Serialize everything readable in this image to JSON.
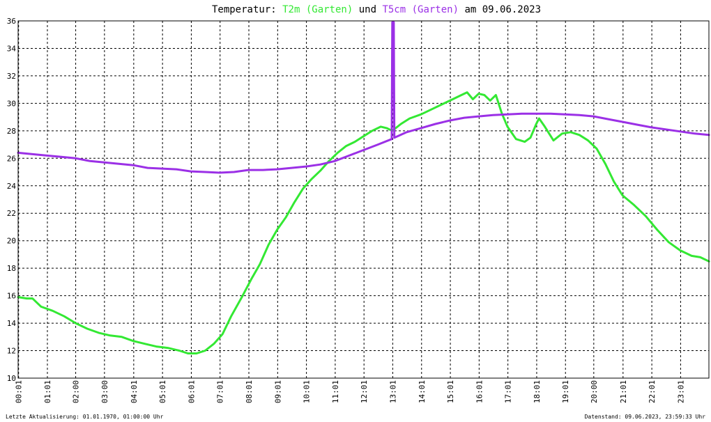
{
  "chart_data": {
    "type": "line",
    "title_parts": [
      {
        "text": "Temperatur: ",
        "color": "#000000"
      },
      {
        "text": "T2m (Garten)",
        "color": "#33e833"
      },
      {
        "text": " und ",
        "color": "#000000"
      },
      {
        "text": "T5cm (Garten)",
        "color": "#9b30e6"
      },
      {
        "text": " am 09.06.2023",
        "color": "#000000"
      }
    ],
    "xlim": [
      0,
      24
    ],
    "ylim": [
      10,
      36
    ],
    "yticks": [
      10,
      12,
      14,
      16,
      18,
      20,
      22,
      24,
      26,
      28,
      30,
      32,
      34,
      36
    ],
    "xticks": [
      {
        "x": 0.0167,
        "label": "00:01"
      },
      {
        "x": 1.0167,
        "label": "01:01"
      },
      {
        "x": 2.0,
        "label": "02:00"
      },
      {
        "x": 3.0,
        "label": "03:00"
      },
      {
        "x": 4.0167,
        "label": "04:01"
      },
      {
        "x": 5.0167,
        "label": "05:01"
      },
      {
        "x": 6.0167,
        "label": "06:01"
      },
      {
        "x": 7.0167,
        "label": "07:01"
      },
      {
        "x": 8.0167,
        "label": "08:01"
      },
      {
        "x": 9.0167,
        "label": "09:01"
      },
      {
        "x": 10.0167,
        "label": "10:01"
      },
      {
        "x": 11.0167,
        "label": "11:01"
      },
      {
        "x": 12.0167,
        "label": "12:01"
      },
      {
        "x": 13.0167,
        "label": "13:01"
      },
      {
        "x": 14.0167,
        "label": "14:01"
      },
      {
        "x": 15.0167,
        "label": "15:01"
      },
      {
        "x": 16.0167,
        "label": "16:01"
      },
      {
        "x": 17.0167,
        "label": "17:01"
      },
      {
        "x": 18.0167,
        "label": "18:01"
      },
      {
        "x": 19.0167,
        "label": "19:01"
      },
      {
        "x": 20.0,
        "label": "20:00"
      },
      {
        "x": 21.0167,
        "label": "21:01"
      },
      {
        "x": 22.0167,
        "label": "22:01"
      },
      {
        "x": 23.0167,
        "label": "23:01"
      }
    ],
    "grid": true,
    "series": [
      {
        "name": "T2m (Garten)",
        "color": "#33e833",
        "points": [
          [
            0,
            15.9
          ],
          [
            0.3,
            15.8
          ],
          [
            0.5,
            15.8
          ],
          [
            0.8,
            15.2
          ],
          [
            1.2,
            14.9
          ],
          [
            1.6,
            14.5
          ],
          [
            2.0,
            14.0
          ],
          [
            2.4,
            13.6
          ],
          [
            2.8,
            13.3
          ],
          [
            3.2,
            13.1
          ],
          [
            3.6,
            13.0
          ],
          [
            4.0,
            12.7
          ],
          [
            4.4,
            12.5
          ],
          [
            4.8,
            12.3
          ],
          [
            5.2,
            12.2
          ],
          [
            5.6,
            12.0
          ],
          [
            5.9,
            11.8
          ],
          [
            6.2,
            11.8
          ],
          [
            6.5,
            12.0
          ],
          [
            6.8,
            12.5
          ],
          [
            7.1,
            13.2
          ],
          [
            7.4,
            14.5
          ],
          [
            7.8,
            16.0
          ],
          [
            8.1,
            17.2
          ],
          [
            8.4,
            18.3
          ],
          [
            8.7,
            19.7
          ],
          [
            9.0,
            20.8
          ],
          [
            9.3,
            21.7
          ],
          [
            9.6,
            22.8
          ],
          [
            9.9,
            23.8
          ],
          [
            10.2,
            24.5
          ],
          [
            10.5,
            25.1
          ],
          [
            10.8,
            25.8
          ],
          [
            11.1,
            26.4
          ],
          [
            11.4,
            26.9
          ],
          [
            11.7,
            27.2
          ],
          [
            12.0,
            27.6
          ],
          [
            12.3,
            28.0
          ],
          [
            12.6,
            28.3
          ],
          [
            12.8,
            28.2
          ],
          [
            13.0,
            28.0
          ],
          [
            13.3,
            28.5
          ],
          [
            13.6,
            28.9
          ],
          [
            14.0,
            29.2
          ],
          [
            14.4,
            29.6
          ],
          [
            14.8,
            30.0
          ],
          [
            15.1,
            30.3
          ],
          [
            15.4,
            30.6
          ],
          [
            15.6,
            30.8
          ],
          [
            15.8,
            30.3
          ],
          [
            16.0,
            30.7
          ],
          [
            16.2,
            30.6
          ],
          [
            16.4,
            30.2
          ],
          [
            16.6,
            30.6
          ],
          [
            16.8,
            29.3
          ],
          [
            17.0,
            28.3
          ],
          [
            17.3,
            27.4
          ],
          [
            17.6,
            27.2
          ],
          [
            17.8,
            27.5
          ],
          [
            18.0,
            28.5
          ],
          [
            18.1,
            28.9
          ],
          [
            18.3,
            28.3
          ],
          [
            18.6,
            27.3
          ],
          [
            18.9,
            27.8
          ],
          [
            19.2,
            27.9
          ],
          [
            19.5,
            27.7
          ],
          [
            19.8,
            27.3
          ],
          [
            20.1,
            26.7
          ],
          [
            20.4,
            25.6
          ],
          [
            20.7,
            24.3
          ],
          [
            21.0,
            23.3
          ],
          [
            21.4,
            22.6
          ],
          [
            21.8,
            21.8
          ],
          [
            22.2,
            20.8
          ],
          [
            22.6,
            19.9
          ],
          [
            23.0,
            19.3
          ],
          [
            23.4,
            18.9
          ],
          [
            23.7,
            18.8
          ],
          [
            24.0,
            18.5
          ]
        ]
      },
      {
        "name": "T5cm (Garten)",
        "color": "#9b30e6",
        "points": [
          [
            0,
            26.4
          ],
          [
            0.5,
            26.3
          ],
          [
            1.0,
            26.2
          ],
          [
            1.5,
            26.1
          ],
          [
            2.0,
            26.0
          ],
          [
            2.5,
            25.8
          ],
          [
            3.0,
            25.7
          ],
          [
            3.5,
            25.6
          ],
          [
            4.0,
            25.5
          ],
          [
            4.5,
            25.3
          ],
          [
            5.0,
            25.25
          ],
          [
            5.5,
            25.2
          ],
          [
            6.0,
            25.05
          ],
          [
            6.5,
            25.0
          ],
          [
            7.0,
            24.95
          ],
          [
            7.5,
            25.0
          ],
          [
            8.0,
            25.15
          ],
          [
            8.5,
            25.15
          ],
          [
            9.0,
            25.2
          ],
          [
            9.5,
            25.3
          ],
          [
            10.0,
            25.4
          ],
          [
            10.5,
            25.55
          ],
          [
            11.0,
            25.8
          ],
          [
            11.5,
            26.2
          ],
          [
            12.0,
            26.6
          ],
          [
            12.5,
            27.0
          ],
          [
            12.98,
            27.4
          ],
          [
            13.0,
            35.9
          ],
          [
            13.05,
            35.9
          ],
          [
            13.07,
            27.5
          ],
          [
            13.5,
            27.9
          ],
          [
            14.0,
            28.2
          ],
          [
            14.5,
            28.5
          ],
          [
            15.0,
            28.75
          ],
          [
            15.5,
            28.95
          ],
          [
            16.0,
            29.05
          ],
          [
            16.5,
            29.15
          ],
          [
            17.0,
            29.2
          ],
          [
            17.5,
            29.25
          ],
          [
            18.0,
            29.25
          ],
          [
            18.5,
            29.25
          ],
          [
            19.0,
            29.2
          ],
          [
            19.5,
            29.15
          ],
          [
            20.0,
            29.05
          ],
          [
            20.5,
            28.85
          ],
          [
            21.0,
            28.65
          ],
          [
            21.5,
            28.45
          ],
          [
            22.0,
            28.25
          ],
          [
            22.5,
            28.1
          ],
          [
            23.0,
            27.95
          ],
          [
            23.5,
            27.8
          ],
          [
            24.0,
            27.7
          ]
        ]
      }
    ]
  },
  "footer": {
    "left": "Letzte Aktualisierung: 01.01.1970, 01:00:00 Uhr",
    "right": "Datenstand: 09.06.2023, 23:59:33 Uhr"
  }
}
